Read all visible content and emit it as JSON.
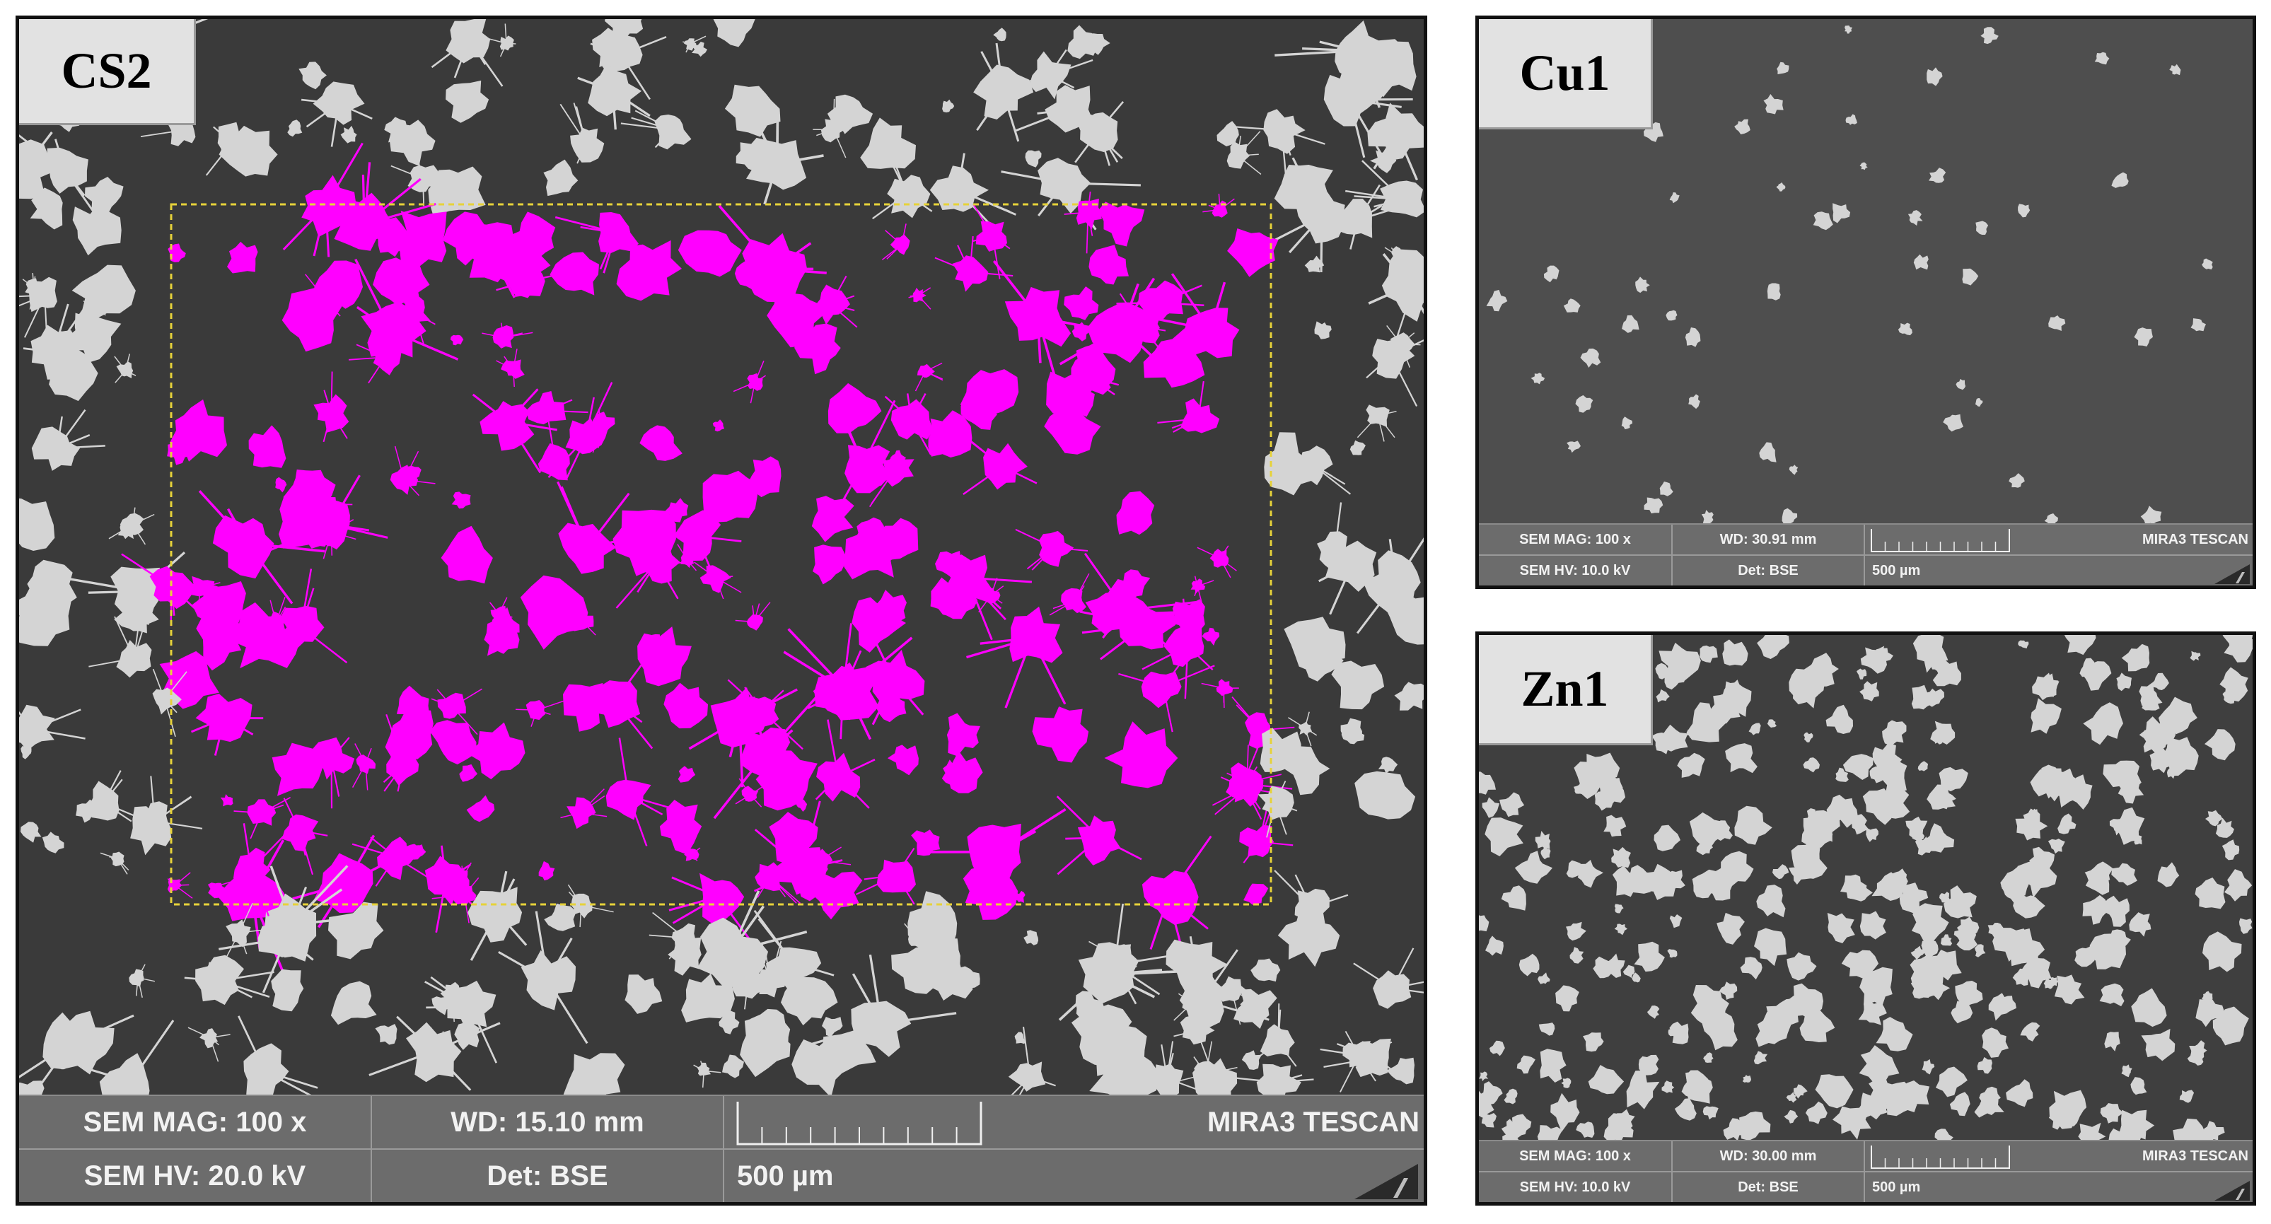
{
  "panels": {
    "cs2": {
      "label": "CS2",
      "databar": {
        "mag": "SEM MAG: 100 x",
        "wd": "WD: 15.10 mm",
        "brand": "MIRA3 TESCAN",
        "hv": "SEM HV: 20.0 kV",
        "det": "Det: BSE",
        "scale": "500 µm"
      },
      "highlight_color": "#ff00ff",
      "roi_color": "#e6d23a"
    },
    "cu1": {
      "label": "Cu1",
      "databar": {
        "mag": "SEM MAG: 100 x",
        "wd": "WD: 30.91 mm",
        "brand": "MIRA3 TESCAN",
        "hv": "SEM HV: 10.0 kV",
        "det": "Det: BSE",
        "scale": "500 µm"
      }
    },
    "zn1": {
      "label": "Zn1",
      "databar": {
        "mag": "SEM MAG: 100 x",
        "wd": "WD: 30.00 mm",
        "brand": "MIRA3 TESCAN",
        "hv": "SEM HV: 10.0 kV",
        "det": "Det: BSE",
        "scale": "500 µm"
      }
    }
  },
  "colors": {
    "background_cs2": "#3a3a3a",
    "background_cu1": "#4e4e4e",
    "background_zn1": "#3f3f3f",
    "particle": "#d4d4d4"
  }
}
